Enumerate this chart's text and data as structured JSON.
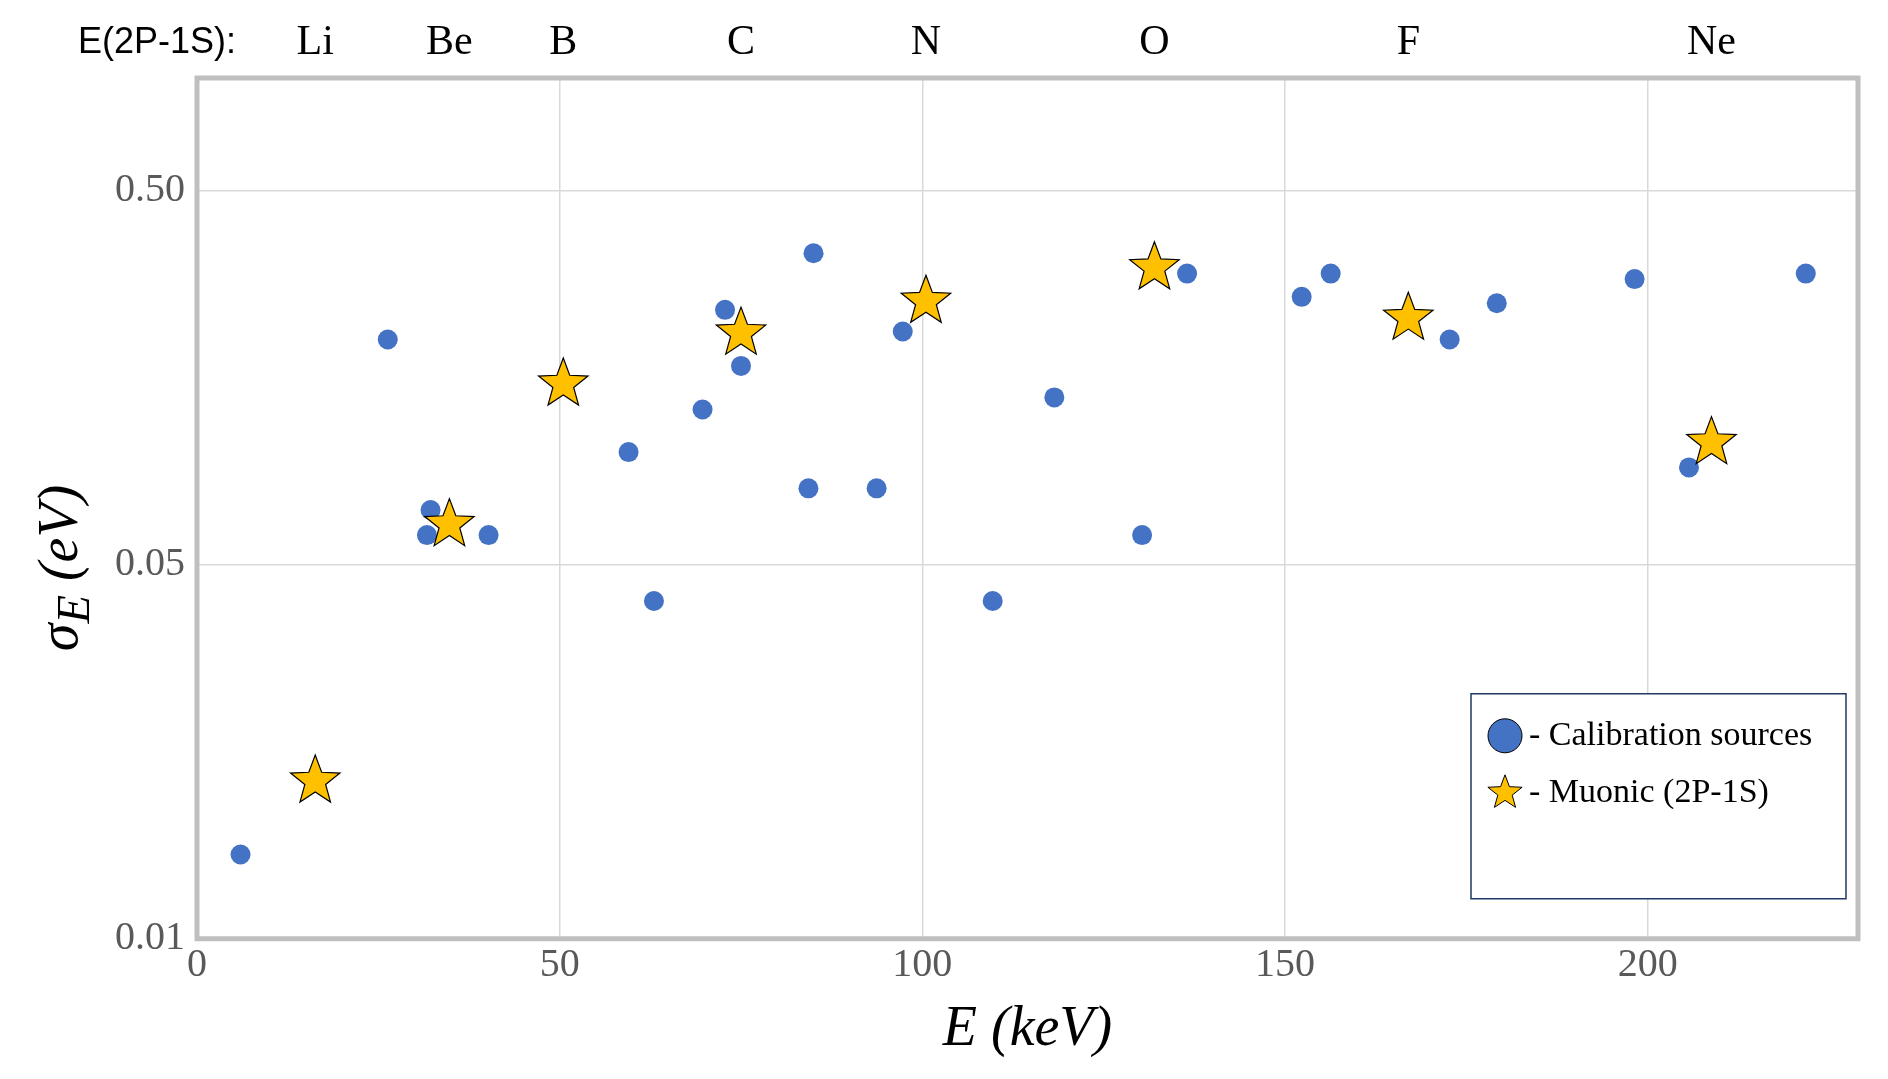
{
  "chart_data": {
    "type": "scatter",
    "xlabel": "E (keV)",
    "ylabel": "σ$_{E}$ (eV)",
    "annotations": [
      "E(2P-1S):",
      "Li",
      "Be",
      "B",
      "C",
      "N",
      "O",
      "F",
      "Ne"
    ],
    "xlim": [
      0,
      229
    ],
    "xticks": [
      0,
      50,
      100,
      150,
      200
    ],
    "ylim": [
      0.005,
      1
    ],
    "yticks": [
      {
        "value": 0.005,
        "label": "0.01"
      },
      {
        "value": 0.05,
        "label": "0.05"
      },
      {
        "value": 0.5,
        "label": "0.50"
      }
    ],
    "log": "y",
    "grid": true,
    "legend": "bottom right",
    "series": [
      {
        "name": "- Calibration sources",
        "color": "#4472c4",
        "marker": "circle",
        "x": [
          6,
          26.3,
          32.2,
          31.7,
          40.2,
          59.5,
          63,
          69.7,
          72.8,
          75,
          84.3,
          85,
          93.7,
          97.3,
          109.7,
          118.2,
          130.3,
          136.5,
          152.3,
          156.3,
          172.7,
          179.2,
          198.2,
          205.7,
          221.8
        ],
        "values": [
          0.0084,
          0.2,
          0.07,
          0.06,
          0.06,
          0.1,
          0.04,
          0.13,
          0.24,
          0.17,
          0.08,
          0.34,
          0.08,
          0.21,
          0.04,
          0.14,
          0.06,
          0.3,
          0.26,
          0.3,
          0.2,
          0.25,
          0.29,
          0.091,
          0.3
        ]
      },
      {
        "name": "- Muonic (2P-1S)",
        "color": "#ffc000",
        "marker": "star",
        "x": [
          16.3,
          34.8,
          50.5,
          75,
          100.5,
          132,
          167,
          208.8
        ],
        "values": [
          0.0132,
          0.064,
          0.152,
          0.208,
          0.253,
          0.311,
          0.228,
          0.106
        ]
      }
    ]
  }
}
